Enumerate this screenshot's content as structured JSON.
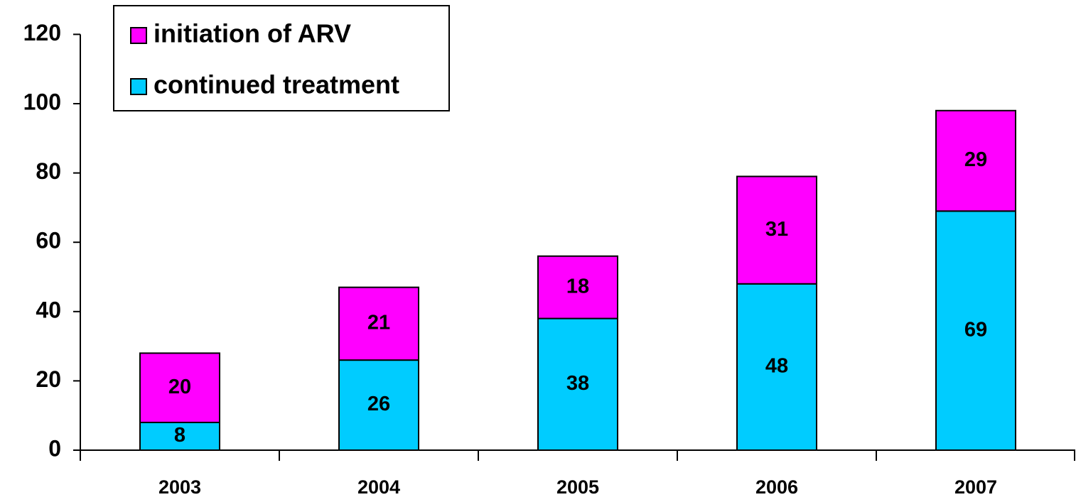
{
  "chart_data": {
    "type": "stacked_bar",
    "categories": [
      "2003",
      "2004",
      "2005",
      "2006",
      "2007"
    ],
    "series": [
      {
        "name": "continued treatment",
        "color": "#00ccff",
        "values": [
          8,
          26,
          38,
          48,
          69
        ]
      },
      {
        "name": "initiation of ARV",
        "color": "#ff00ff",
        "values": [
          20,
          21,
          18,
          31,
          29
        ]
      }
    ],
    "ylim": [
      0,
      120
    ],
    "yticks": [
      0,
      20,
      40,
      60,
      80,
      100,
      120
    ],
    "grid": false,
    "legend": "top-left"
  }
}
